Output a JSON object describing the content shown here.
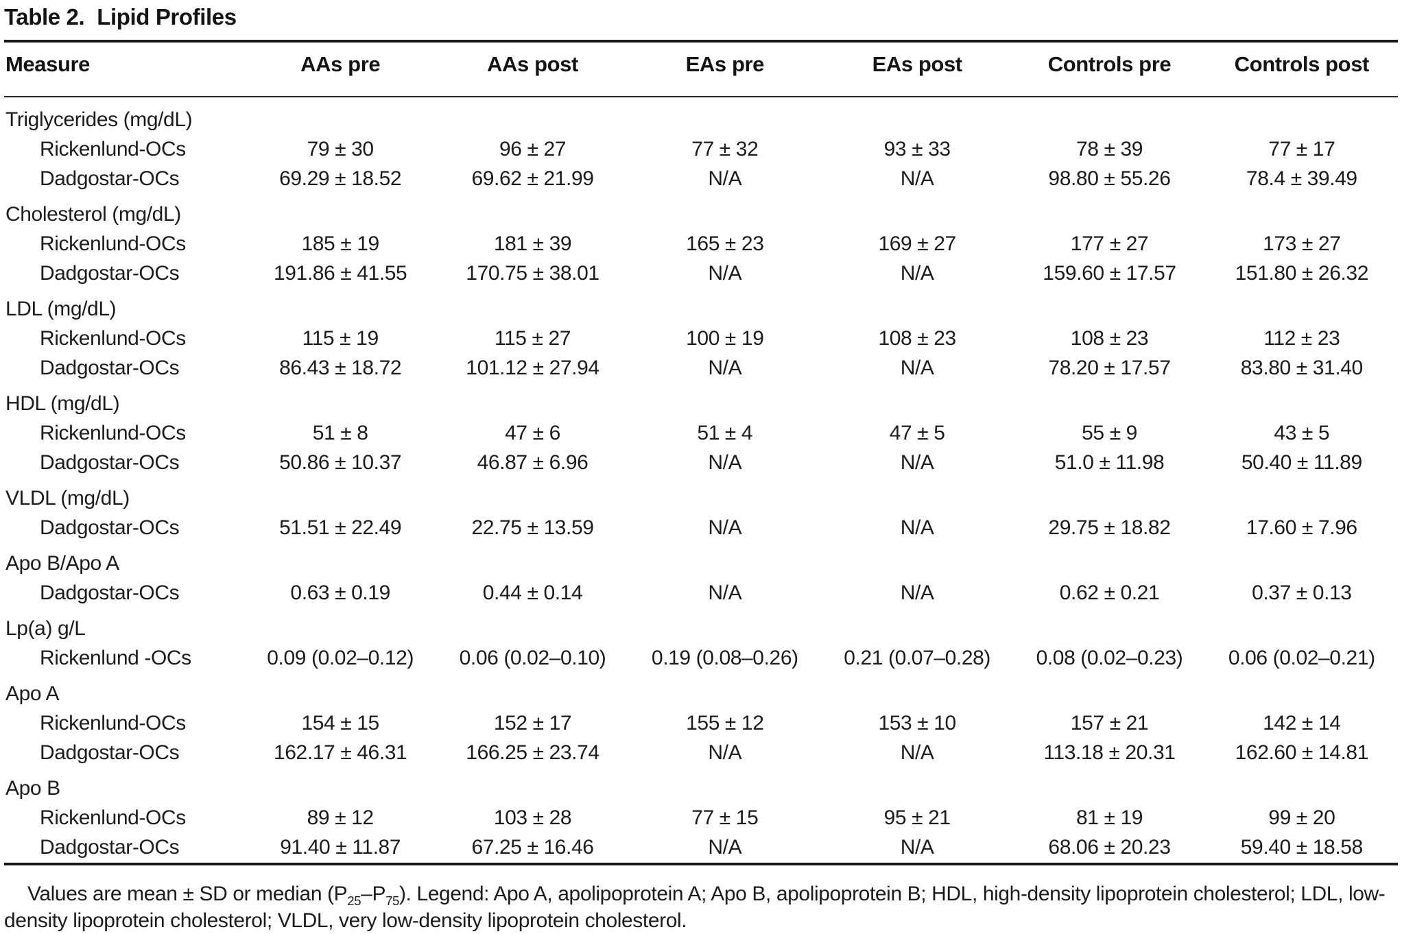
{
  "title": {
    "label": "Table 2.",
    "text": "Lipid Profiles"
  },
  "table": {
    "columns": [
      "Measure",
      "AAs pre",
      "AAs post",
      "EAs pre",
      "EAs post",
      "Controls pre",
      "Controls post"
    ],
    "groups": [
      {
        "measure": "Triglycerides (mg/dL)",
        "rows": [
          {
            "study": "Rickenlund-OCs",
            "values": [
              "79 ± 30",
              "96 ± 27",
              "77 ± 32",
              "93 ± 33",
              "78 ± 39",
              "77 ± 17"
            ]
          },
          {
            "study": "Dadgostar-OCs",
            "values": [
              "69.29 ± 18.52",
              "69.62 ± 21.99",
              "N/A",
              "N/A",
              "98.80 ± 55.26",
              "78.4 ± 39.49"
            ]
          }
        ]
      },
      {
        "measure": "Cholesterol (mg/dL)",
        "rows": [
          {
            "study": "Rickenlund-OCs",
            "values": [
              "185 ± 19",
              "181 ± 39",
              "165 ± 23",
              "169 ± 27",
              "177 ± 27",
              "173 ± 27"
            ]
          },
          {
            "study": "Dadgostar-OCs",
            "values": [
              "191.86 ± 41.55",
              "170.75 ± 38.01",
              "N/A",
              "N/A",
              "159.60 ± 17.57",
              "151.80 ± 26.32"
            ]
          }
        ]
      },
      {
        "measure": "LDL (mg/dL)",
        "rows": [
          {
            "study": "Rickenlund-OCs",
            "values": [
              "115 ± 19",
              "115 ± 27",
              "100 ± 19",
              "108 ± 23",
              "108 ± 23",
              "112 ± 23"
            ]
          },
          {
            "study": "Dadgostar-OCs",
            "values": [
              "86.43 ± 18.72",
              "101.12 ± 27.94",
              "N/A",
              "N/A",
              "78.20 ± 17.57",
              "83.80 ± 31.40"
            ]
          }
        ]
      },
      {
        "measure": "HDL (mg/dL)",
        "rows": [
          {
            "study": "Rickenlund-OCs",
            "values": [
              "51 ± 8",
              "47 ± 6",
              "51 ± 4",
              "47 ± 5",
              "55 ± 9",
              "43 ± 5"
            ]
          },
          {
            "study": "Dadgostar-OCs",
            "values": [
              "50.86 ± 10.37",
              "46.87 ± 6.96",
              "N/A",
              "N/A",
              "51.0 ± 11.98",
              "50.40 ± 11.89"
            ]
          }
        ]
      },
      {
        "measure": "VLDL (mg/dL)",
        "rows": [
          {
            "study": "Dadgostar-OCs",
            "values": [
              "51.51 ± 22.49",
              "22.75 ± 13.59",
              "N/A",
              "N/A",
              "29.75 ± 18.82",
              "17.60 ± 7.96"
            ]
          }
        ]
      },
      {
        "measure": "Apo B/Apo A",
        "rows": [
          {
            "study": "Dadgostar-OCs",
            "values": [
              "0.63 ± 0.19",
              "0.44 ± 0.14",
              "N/A",
              "N/A",
              "0.62 ± 0.21",
              "0.37 ± 0.13"
            ]
          }
        ]
      },
      {
        "measure": "Lp(a) g/L",
        "rows": [
          {
            "study": "Rickenlund -OCs",
            "values": [
              "0.09 (0.02–0.12)",
              "0.06 (0.02–0.10)",
              "0.19 (0.08–0.26)",
              "0.21 (0.07–0.28)",
              "0.08 (0.02–0.23)",
              "0.06 (0.02–0.21)"
            ]
          }
        ]
      },
      {
        "measure": "Apo A",
        "rows": [
          {
            "study": "Rickenlund-OCs",
            "values": [
              "154 ± 15",
              "152 ± 17",
              "155 ± 12",
              "153 ± 10",
              "157 ± 21",
              "142 ± 14"
            ]
          },
          {
            "study": "Dadgostar-OCs",
            "values": [
              "162.17 ± 46.31",
              "166.25 ± 23.74",
              "N/A",
              "N/A",
              "113.18 ± 20.31",
              "162.60 ± 14.81"
            ]
          }
        ]
      },
      {
        "measure": "Apo B",
        "rows": [
          {
            "study": "Rickenlund-OCs",
            "values": [
              "89 ± 12",
              "103 ± 28",
              "77 ± 15",
              "95 ± 21",
              "81 ± 19",
              "99 ± 20"
            ]
          },
          {
            "study": "Dadgostar-OCs",
            "values": [
              "91.40 ± 11.87",
              "67.25 ± 16.46",
              "N/A",
              "N/A",
              "68.06 ± 20.23",
              "59.40 ± 18.58"
            ]
          }
        ]
      }
    ]
  },
  "footnote": {
    "part1": "Values are mean ± SD or median (P",
    "sub1": "25",
    "part2": "–P",
    "sub2": "75",
    "part3": "). Legend: Apo A, apolipoprotein A; Apo B, apolipoprotein B; HDL, high-density lipoprotein cholesterol; LDL, low-density lipoprotein cholesterol; VLDL, very low-density lipoprotein cholesterol."
  }
}
